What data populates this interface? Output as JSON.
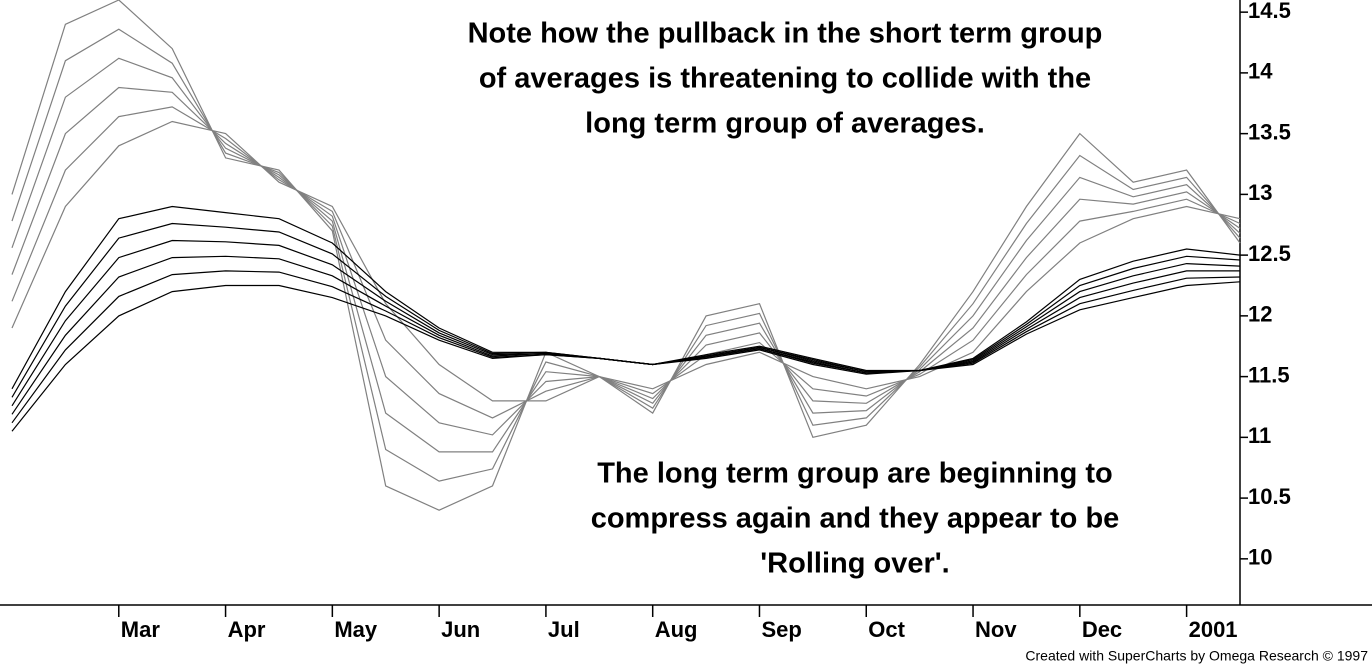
{
  "chart_data": {
    "type": "line",
    "categories": [
      null,
      null,
      "Mar",
      null,
      "Apr",
      null,
      "May",
      null,
      "Jun",
      null,
      "Jul",
      null,
      "Aug",
      null,
      "Sep",
      null,
      "Oct",
      null,
      "Nov",
      null,
      "Dec",
      null,
      "2001",
      null
    ],
    "ylim": [
      9.62,
      14.6
    ],
    "yticks": [
      10,
      10.5,
      11,
      11.5,
      12,
      12.5,
      13,
      13.5,
      14,
      14.5
    ],
    "annotations": [
      [
        "Note how the pullback in the short term group",
        "of averages is threatening to collide with the",
        "long term group of averages."
      ],
      [
        "The long term group are beginning to",
        "compress again and they appear to be",
        "'Rolling over'."
      ]
    ],
    "credit": "Created with SuperCharts by Omega Research © 1997",
    "series": [
      {
        "color": "#808080",
        "values": [
          13.0,
          14.4,
          14.6,
          14.2,
          13.3,
          13.2,
          12.7,
          10.6,
          10.4,
          10.6,
          11.7,
          11.5,
          11.2,
          12.0,
          12.1,
          11.0,
          11.1,
          11.6,
          12.2,
          12.9,
          13.5,
          13.1,
          13.2,
          12.6
        ]
      },
      {
        "color": "#808080",
        "values": [
          12.78,
          14.1,
          14.36,
          14.08,
          13.34,
          13.18,
          12.74,
          10.9,
          10.64,
          10.74,
          11.62,
          11.5,
          11.24,
          11.92,
          12.02,
          11.1,
          11.16,
          11.58,
          12.1,
          12.76,
          13.32,
          13.04,
          13.14,
          12.64
        ]
      },
      {
        "color": "#808080",
        "values": [
          12.56,
          13.8,
          14.12,
          13.96,
          13.38,
          13.16,
          12.78,
          11.2,
          10.88,
          10.88,
          11.54,
          11.5,
          11.28,
          11.84,
          11.94,
          11.2,
          11.22,
          11.56,
          12.0,
          12.62,
          13.14,
          12.98,
          13.08,
          12.68
        ]
      },
      {
        "color": "#808080",
        "values": [
          12.34,
          13.5,
          13.88,
          13.84,
          13.42,
          13.14,
          12.82,
          11.5,
          11.12,
          11.02,
          11.46,
          11.5,
          11.32,
          11.76,
          11.86,
          11.3,
          11.28,
          11.54,
          11.9,
          12.48,
          12.96,
          12.92,
          13.02,
          12.72
        ]
      },
      {
        "color": "#808080",
        "values": [
          12.12,
          13.2,
          13.64,
          13.72,
          13.46,
          13.12,
          12.86,
          11.8,
          11.36,
          11.16,
          11.38,
          11.5,
          11.36,
          11.68,
          11.78,
          11.4,
          11.34,
          11.52,
          11.8,
          12.34,
          12.78,
          12.86,
          12.96,
          12.76
        ]
      },
      {
        "color": "#808080",
        "values": [
          11.9,
          12.9,
          13.4,
          13.6,
          13.5,
          13.1,
          12.9,
          12.1,
          11.6,
          11.3,
          11.3,
          11.5,
          11.4,
          11.6,
          11.7,
          11.5,
          11.4,
          11.5,
          11.7,
          12.2,
          12.6,
          12.8,
          12.9,
          12.8
        ]
      },
      {
        "color": "#000000",
        "values": [
          11.4,
          12.2,
          12.8,
          12.9,
          12.85,
          12.8,
          12.6,
          12.2,
          11.9,
          11.7,
          11.7,
          11.65,
          11.6,
          11.68,
          11.75,
          11.65,
          11.55,
          11.55,
          11.65,
          11.95,
          12.3,
          12.45,
          12.55,
          12.5
        ]
      },
      {
        "color": "#000000",
        "values": [
          11.33,
          12.08,
          12.64,
          12.76,
          12.73,
          12.69,
          12.51,
          12.16,
          11.88,
          11.69,
          11.7,
          11.65,
          11.6,
          11.67,
          11.74,
          11.64,
          11.54,
          11.55,
          11.64,
          11.93,
          12.25,
          12.39,
          12.49,
          12.46
        ]
      },
      {
        "color": "#000000",
        "values": [
          11.26,
          11.96,
          12.48,
          12.62,
          12.61,
          12.58,
          12.42,
          12.12,
          11.86,
          11.68,
          11.69,
          11.65,
          11.6,
          11.67,
          11.74,
          11.63,
          11.54,
          11.55,
          11.63,
          11.91,
          12.2,
          12.33,
          12.43,
          12.41
        ]
      },
      {
        "color": "#000000",
        "values": [
          11.19,
          11.84,
          12.32,
          12.48,
          12.49,
          12.47,
          12.33,
          12.08,
          11.84,
          11.67,
          11.69,
          11.65,
          11.6,
          11.66,
          11.73,
          11.62,
          11.53,
          11.55,
          11.62,
          11.89,
          12.15,
          12.27,
          12.37,
          12.37
        ]
      },
      {
        "color": "#000000",
        "values": [
          11.12,
          11.72,
          12.16,
          12.34,
          12.37,
          12.36,
          12.24,
          12.04,
          11.82,
          11.66,
          11.68,
          11.65,
          11.6,
          11.66,
          11.73,
          11.61,
          11.53,
          11.55,
          11.61,
          11.87,
          12.1,
          12.21,
          12.31,
          12.32
        ]
      },
      {
        "color": "#000000",
        "values": [
          11.05,
          11.6,
          12.0,
          12.2,
          12.25,
          12.25,
          12.15,
          12.0,
          11.8,
          11.65,
          11.68,
          11.65,
          11.6,
          11.65,
          11.72,
          11.6,
          11.52,
          11.55,
          11.6,
          11.85,
          12.05,
          12.15,
          12.25,
          12.28
        ]
      }
    ]
  }
}
